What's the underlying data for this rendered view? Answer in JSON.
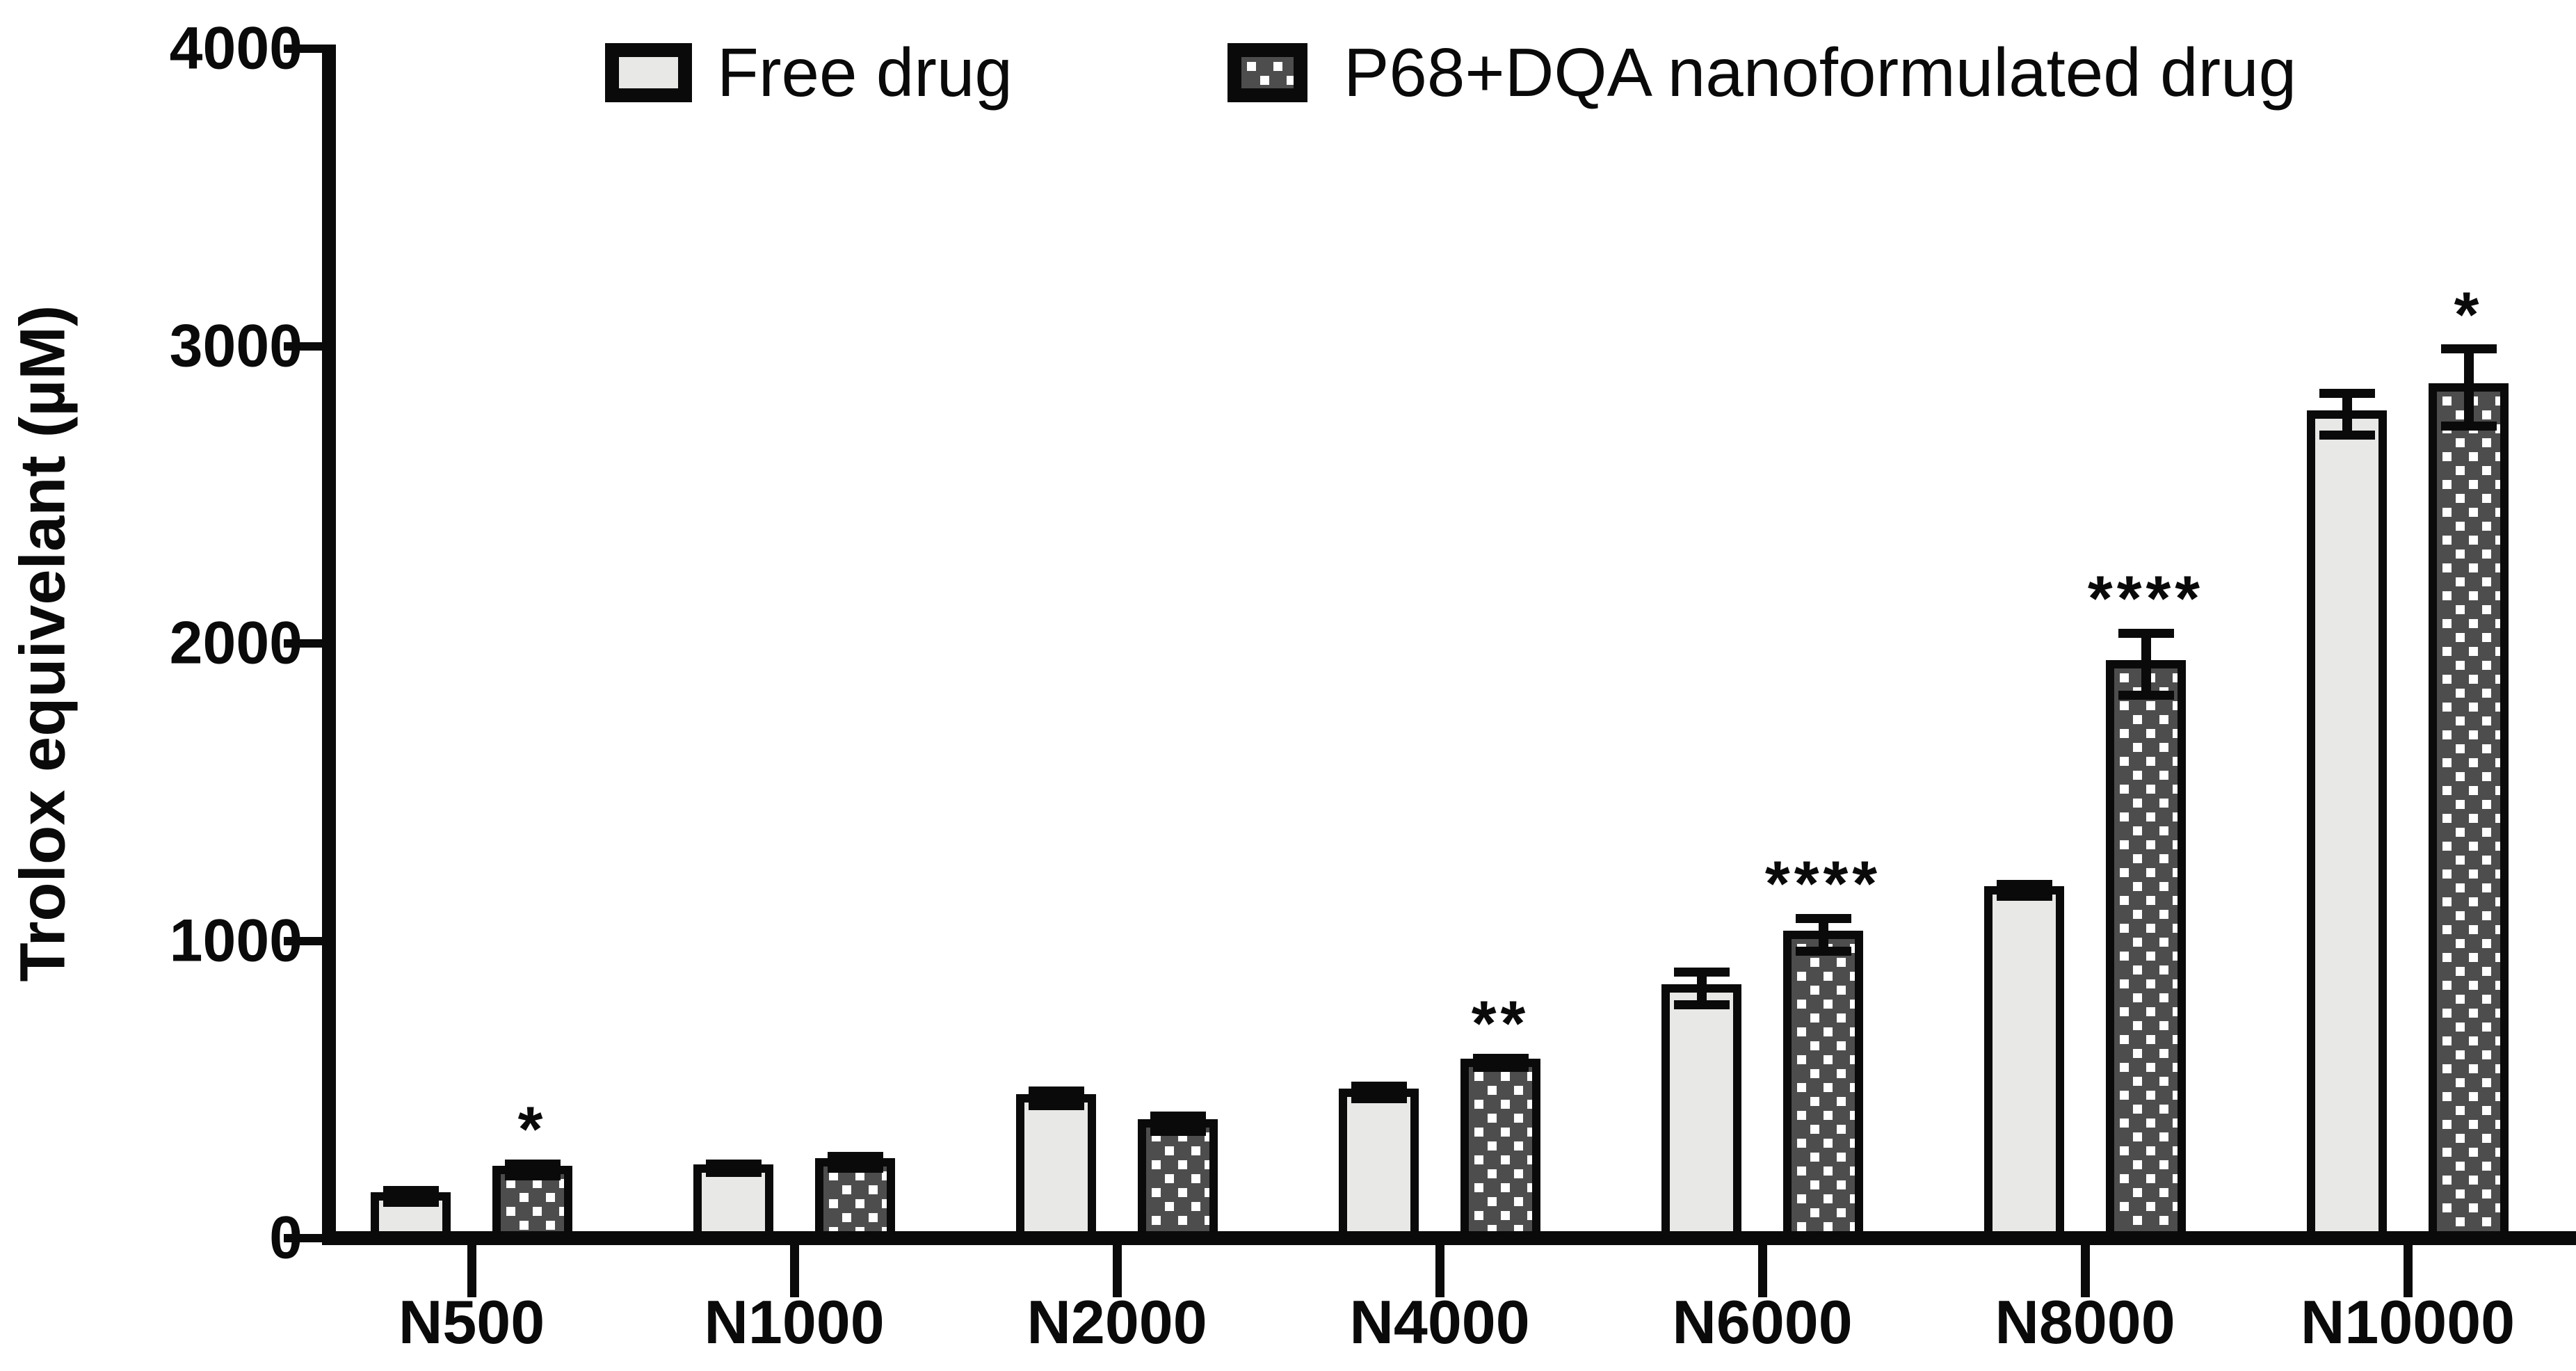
{
  "figure": {
    "background": "#ffffff"
  },
  "legend": {
    "position": "top",
    "items": [
      {
        "label": "Free drug",
        "swatch": "free"
      },
      {
        "label": "P68+DQA nanoformulated drug",
        "swatch": "nano"
      }
    ]
  },
  "colors": {
    "axis": "#0a0a0a",
    "text": "#0a0a0a",
    "free_fill": "#e8e8e6",
    "nano_fill": "#4d4d4d",
    "nano_dot": "#ffffff"
  },
  "chart_data": {
    "type": "bar",
    "title": "",
    "xlabel": "",
    "ylabel": "Trolox equivelant (µM)",
    "ylim": [
      0,
      4000
    ],
    "yticks": [
      0,
      1000,
      2000,
      3000,
      4000
    ],
    "grid": false,
    "legend_position": "top",
    "categories": [
      "N500",
      "N1000",
      "N2000",
      "N4000",
      "N6000",
      "N8000",
      "N10000"
    ],
    "series": [
      {
        "name": "Free drug",
        "style": "free",
        "values": [
          140,
          235,
          470,
          490,
          840,
          1170,
          2770
        ],
        "errors": [
          20,
          15,
          25,
          20,
          55,
          20,
          70
        ]
      },
      {
        "name": "P68+DQA nanoformulated drug",
        "style": "nano",
        "values": [
          230,
          255,
          385,
          590,
          1020,
          1930,
          2860
        ],
        "errors": [
          20,
          20,
          25,
          15,
          55,
          105,
          130
        ]
      }
    ],
    "significance": {
      "over_series": "P68+DQA nanoformulated drug",
      "labels": [
        "*",
        "",
        "",
        "**",
        "****",
        "****",
        "*"
      ]
    }
  }
}
